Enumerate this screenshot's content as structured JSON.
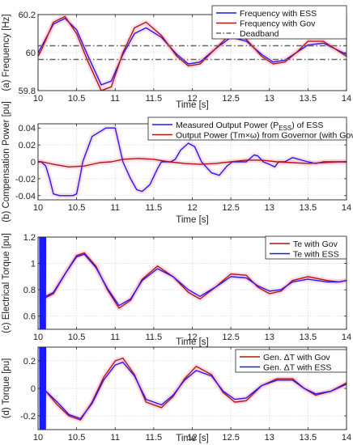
{
  "chart_data": [
    {
      "type": "line",
      "xlabel": "Time [s]",
      "ylabel": "(a) Frequency [Hz]",
      "xlim": [
        10,
        14
      ],
      "ylim": [
        59.8,
        60.2
      ],
      "xticks": [
        10,
        10.5,
        11,
        11.5,
        12,
        12.5,
        13,
        13.5,
        14
      ],
      "xtick_labels": [
        "10",
        "10.5",
        "11",
        "11.5",
        "12",
        "12.5",
        "13",
        "13.5",
        "14"
      ],
      "yticks": [
        59.8,
        60,
        60.2
      ],
      "ytick_labels": [
        "59.8",
        "60",
        "60.2"
      ],
      "grid": true,
      "legend_position": "top-right",
      "series": [
        {
          "name": "Frequency with ESS",
          "color": "#1a1aff",
          "x": [
            9.9,
            10.0,
            10.05,
            10.2,
            10.35,
            10.5,
            10.65,
            10.82,
            10.95,
            11.1,
            11.25,
            11.4,
            11.6,
            11.8,
            11.95,
            12.1,
            12.3,
            12.5,
            12.7,
            12.9,
            13.05,
            13.2,
            13.35,
            13.5,
            13.7,
            13.85,
            14.0
          ],
          "y": [
            60.0,
            60.0,
            60.035,
            60.15,
            60.18,
            60.12,
            59.98,
            59.83,
            59.85,
            59.99,
            60.1,
            60.13,
            60.08,
            59.99,
            59.94,
            59.95,
            60.02,
            60.08,
            60.06,
            59.99,
            59.95,
            59.96,
            60.0,
            60.04,
            60.05,
            60.02,
            59.99
          ]
        },
        {
          "name": "Frequency with Gov",
          "color": "#b01515",
          "x": [
            9.9,
            10.0,
            10.05,
            10.2,
            10.35,
            10.5,
            10.65,
            10.82,
            10.95,
            11.1,
            11.25,
            11.4,
            11.6,
            11.8,
            11.95,
            12.1,
            12.3,
            12.5,
            12.7,
            12.9,
            13.05,
            13.2,
            13.35,
            13.5,
            13.7,
            13.85,
            14.0
          ],
          "y": [
            59.98,
            59.98,
            60.02,
            60.16,
            60.19,
            60.1,
            59.95,
            59.8,
            59.82,
            60.0,
            60.13,
            60.16,
            60.09,
            59.98,
            59.93,
            59.94,
            60.02,
            60.1,
            60.07,
            59.98,
            59.94,
            59.95,
            60.0,
            60.06,
            60.06,
            60.02,
            59.98
          ]
        },
        {
          "name": "Deadband",
          "color": "#666666",
          "dash": true,
          "x": [
            9.9,
            14.0
          ],
          "y": [
            60.036,
            60.036
          ]
        },
        {
          "name": "",
          "color": "#666666",
          "dash": true,
          "x": [
            9.9,
            14.0
          ],
          "y": [
            59.964,
            59.964
          ]
        }
      ]
    },
    {
      "type": "line",
      "xlabel": "Time [s]",
      "ylabel": "(b) Compensation Power  [pu]",
      "xlim": [
        10,
        14
      ],
      "ylim": [
        -0.045,
        0.045
      ],
      "xticks": [
        10,
        10.5,
        11,
        11.5,
        12,
        12.5,
        13,
        13.5,
        14
      ],
      "xtick_labels": [
        "10",
        "10.5",
        "11",
        "11.5",
        "12",
        "12.5",
        "13",
        "13.5",
        "14"
      ],
      "yticks": [
        -0.04,
        -0.02,
        0,
        0.02,
        0.04
      ],
      "ytick_labels": [
        "-0.04",
        "-0.02",
        "0",
        "0.02",
        "0.04"
      ],
      "grid": true,
      "legend_position": "top-right",
      "series": [
        {
          "name": "Measured Output Power (P",
          "name_sub": "ESS",
          "name_suffix": ") of ESS",
          "color": "#1a1aff",
          "x": [
            9.9,
            10.04,
            10.1,
            10.15,
            10.2,
            10.28,
            10.45,
            10.5,
            10.55,
            10.58,
            10.6,
            10.7,
            10.88,
            10.92,
            11.0,
            11.1,
            11.2,
            11.28,
            11.35,
            11.45,
            11.55,
            11.6,
            11.62,
            11.65,
            11.72,
            11.78,
            11.85,
            11.95,
            12.03,
            12.08,
            12.12,
            12.18,
            12.25,
            12.35,
            12.45,
            12.52,
            12.6,
            12.65,
            12.7,
            12.8,
            12.85,
            12.92,
            13.0,
            13.07,
            13.12,
            13.2,
            13.3,
            13.5,
            13.6,
            13.7,
            13.8,
            14.0
          ],
          "y": [
            0.0,
            0.0,
            -0.005,
            -0.02,
            -0.038,
            -0.04,
            -0.04,
            -0.038,
            -0.015,
            0.0,
            0.005,
            0.03,
            0.04,
            0.04,
            0.04,
            0.0,
            -0.02,
            -0.033,
            -0.035,
            -0.027,
            -0.008,
            0.0,
            0.0,
            0.0,
            0.0,
            0.003,
            0.014,
            0.022,
            0.018,
            0.008,
            0.0,
            -0.006,
            -0.013,
            -0.016,
            -0.005,
            0.0,
            0.0,
            0.0,
            0.0,
            0.008,
            0.007,
            0.0,
            -0.003,
            -0.006,
            0.0,
            0.0,
            0.005,
            0.0,
            -0.002,
            0.0,
            0.0,
            0.0
          ]
        },
        {
          "name": "Output Power (Tm×ω) from Governor (with Gov)",
          "color": "#b01515",
          "x": [
            9.9,
            10.05,
            10.2,
            10.4,
            10.6,
            10.8,
            10.95,
            11.1,
            11.3,
            11.5,
            11.7,
            11.9,
            12.1,
            12.3,
            12.5,
            12.7,
            12.9,
            13.1,
            13.3,
            13.5,
            13.7,
            13.9,
            14.0
          ],
          "y": [
            0.0,
            0.0,
            -0.003,
            -0.006,
            -0.005,
            -0.001,
            0.0,
            0.003,
            0.004,
            0.003,
            0.0,
            -0.002,
            -0.003,
            -0.002,
            0.0,
            0.002,
            0.002,
            0.0,
            -0.001,
            -0.002,
            -0.001,
            0.0,
            0.0
          ]
        }
      ]
    },
    {
      "type": "line",
      "xlabel": "Time [s]",
      "ylabel": "(c) Electrical Torque  [pu]",
      "xlim": [
        10,
        14
      ],
      "ylim": [
        0.5,
        1.2
      ],
      "xticks": [
        10,
        10.5,
        11,
        11.5,
        12,
        12.5,
        13,
        13.5,
        14
      ],
      "xtick_labels": [
        "10",
        "10.5",
        "11",
        "11.5",
        "12",
        "12.5",
        "13",
        "13.5",
        "14"
      ],
      "yticks": [
        0.6,
        0.8,
        1.0,
        1.2
      ],
      "ytick_labels": [
        "0.6",
        "0.8",
        "1",
        "1.2"
      ],
      "grid": true,
      "legend_position": "top-right",
      "series": [
        {
          "name": "Te with Gov",
          "color": "#b01515",
          "x": [
            10.1,
            10.2,
            10.35,
            10.5,
            10.6,
            10.75,
            10.9,
            11.05,
            11.2,
            11.35,
            11.55,
            11.75,
            11.95,
            12.1,
            12.3,
            12.5,
            12.7,
            12.85,
            13.0,
            13.15,
            13.3,
            13.5,
            13.75,
            13.9,
            14.0
          ],
          "y": [
            0.74,
            0.77,
            0.92,
            1.06,
            1.08,
            0.98,
            0.8,
            0.66,
            0.72,
            0.88,
            0.98,
            0.9,
            0.78,
            0.73,
            0.82,
            0.92,
            0.91,
            0.82,
            0.77,
            0.79,
            0.87,
            0.9,
            0.87,
            0.86,
            0.87
          ]
        },
        {
          "name": "Te with ESS",
          "color": "#1a1aff",
          "x": [
            10.1,
            10.2,
            10.35,
            10.5,
            10.6,
            10.75,
            10.9,
            11.05,
            11.2,
            11.35,
            11.55,
            11.75,
            11.95,
            12.1,
            12.3,
            12.5,
            12.7,
            12.85,
            13.0,
            13.15,
            13.3,
            13.5,
            13.75,
            13.9,
            14.0
          ],
          "y": [
            0.75,
            0.78,
            0.92,
            1.05,
            1.07,
            0.97,
            0.81,
            0.68,
            0.73,
            0.87,
            0.96,
            0.9,
            0.8,
            0.75,
            0.82,
            0.9,
            0.89,
            0.83,
            0.79,
            0.8,
            0.86,
            0.88,
            0.86,
            0.86,
            0.87
          ]
        },
        {
          "name": "",
          "color": "#1a1aff",
          "x": [
            9.9,
            10.0
          ],
          "y": [
            0.86,
            0.86
          ]
        }
      ]
    },
    {
      "type": "line",
      "xlabel": "Time [s]",
      "ylabel": "(d) Torque  [pu]",
      "xlim": [
        10,
        14
      ],
      "ylim": [
        -0.3,
        0.3
      ],
      "xticks": [
        10,
        10.5,
        11,
        11.5,
        12,
        12.5,
        13,
        13.5,
        14
      ],
      "xtick_labels": [
        "10",
        "10.5",
        "11",
        "11.5",
        "12",
        "12.5",
        "13",
        "13.5",
        "14"
      ],
      "yticks": [
        -0.2,
        0,
        0.2
      ],
      "ytick_labels": [
        "-0.2",
        "0",
        "0.2"
      ],
      "grid": true,
      "legend_position": "top-right",
      "series": [
        {
          "name": "Gen. ΔT with Gov",
          "color": "#b01515",
          "x": [
            10.1,
            10.25,
            10.4,
            10.55,
            10.7,
            10.85,
            11.0,
            11.1,
            11.25,
            11.4,
            11.6,
            11.75,
            11.9,
            12.05,
            12.25,
            12.4,
            12.55,
            12.7,
            12.9,
            13.1,
            13.3,
            13.45,
            13.6,
            13.8,
            14.0
          ],
          "y": [
            -0.02,
            -0.12,
            -0.2,
            -0.23,
            -0.1,
            0.08,
            0.2,
            0.22,
            0.1,
            -0.1,
            -0.14,
            -0.06,
            0.07,
            0.16,
            0.1,
            -0.03,
            -0.1,
            -0.09,
            0.02,
            0.07,
            0.07,
            0.0,
            -0.05,
            -0.02,
            0.04
          ]
        },
        {
          "name": "Gen. ΔT with ESS",
          "color": "#1a1aff",
          "x": [
            10.1,
            10.25,
            10.4,
            10.55,
            10.7,
            10.85,
            11.0,
            11.1,
            11.25,
            11.4,
            11.6,
            11.75,
            11.9,
            12.05,
            12.25,
            12.4,
            12.55,
            12.7,
            12.9,
            13.1,
            13.3,
            13.45,
            13.6,
            13.8,
            14.0
          ],
          "y": [
            -0.02,
            -0.1,
            -0.19,
            -0.22,
            -0.11,
            0.06,
            0.17,
            0.19,
            0.09,
            -0.08,
            -0.12,
            -0.05,
            0.06,
            0.13,
            0.09,
            -0.02,
            -0.08,
            -0.07,
            0.02,
            0.06,
            0.06,
            0.0,
            -0.04,
            -0.02,
            0.03
          ]
        },
        {
          "name": "",
          "color": "#1a1aff",
          "x": [
            9.9,
            10.0
          ],
          "y": [
            0.0,
            0.0
          ]
        }
      ]
    }
  ]
}
